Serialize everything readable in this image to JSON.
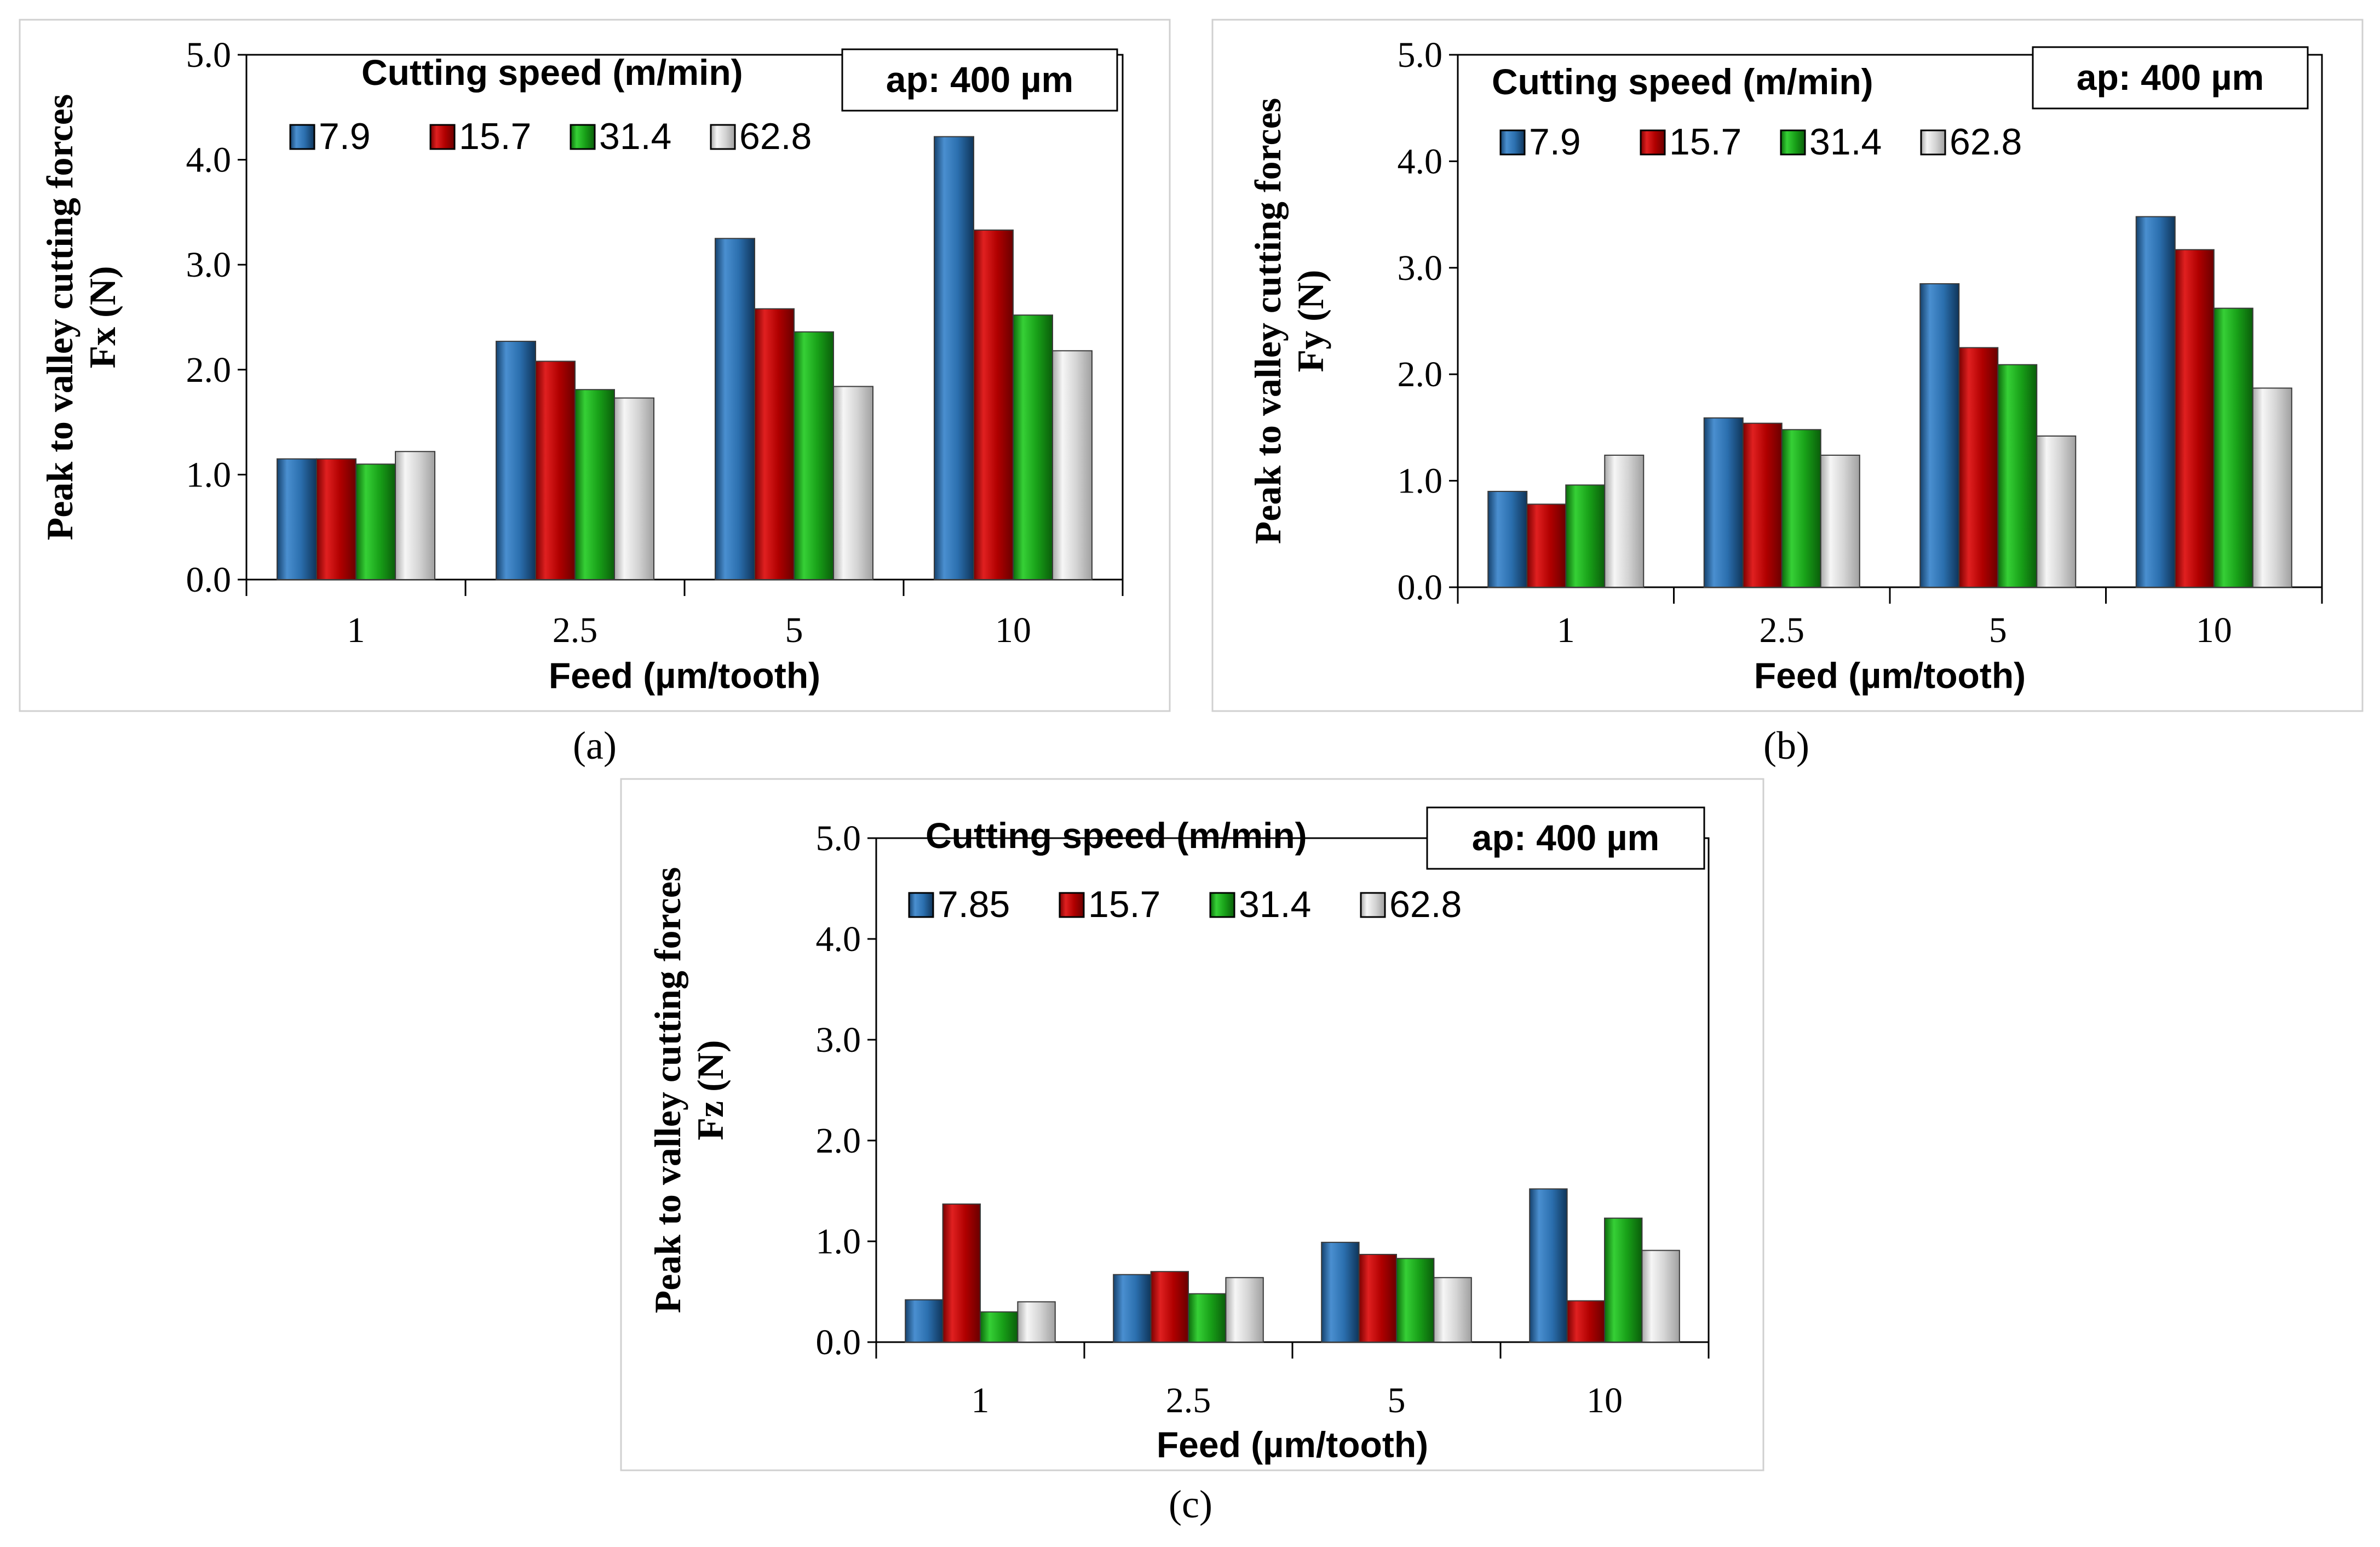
{
  "chart_data": [
    {
      "type": "bar",
      "panel_caption": "(a)",
      "legend_title": "Cutting speed (m/min)",
      "annotation": "ap: 400 µm",
      "ylabel_line1": "Peak to valley cutting forces",
      "ylabel_line2": "Fx (N)",
      "xlabel": "Feed (µm/tooth)",
      "categories": [
        "1",
        "2.5",
        "5",
        "10"
      ],
      "ylim": [
        0,
        5
      ],
      "yticks": [
        "0.0",
        "1.0",
        "2.0",
        "3.0",
        "4.0",
        "5.0"
      ],
      "series": [
        {
          "name": "7.9",
          "color": "#2e75b6",
          "values": [
            1.15,
            2.27,
            3.25,
            4.22
          ]
        },
        {
          "name": "15.7",
          "color": "#c00000",
          "values": [
            1.15,
            2.08,
            2.58,
            3.33
          ]
        },
        {
          "name": "31.4",
          "color": "#1aa51a",
          "values": [
            1.1,
            1.81,
            2.36,
            2.52
          ]
        },
        {
          "name": "62.8",
          "color": "#d9d9d9",
          "values": [
            1.22,
            1.73,
            1.84,
            2.18
          ]
        }
      ]
    },
    {
      "type": "bar",
      "panel_caption": "(b)",
      "legend_title": "Cutting speed (m/min)",
      "annotation": "ap: 400 µm",
      "ylabel_line1": "Peak to valley cutting forces",
      "ylabel_line2": "Fy (N)",
      "xlabel": "Feed (µm/tooth)",
      "categories": [
        "1",
        "2.5",
        "5",
        "10"
      ],
      "ylim": [
        0,
        5
      ],
      "yticks": [
        "0.0",
        "1.0",
        "2.0",
        "3.0",
        "4.0",
        "5.0"
      ],
      "series": [
        {
          "name": "7.9",
          "color": "#2e75b6",
          "values": [
            0.9,
            1.59,
            2.85,
            3.48
          ]
        },
        {
          "name": "15.7",
          "color": "#c00000",
          "values": [
            0.78,
            1.54,
            2.25,
            3.17
          ]
        },
        {
          "name": "31.4",
          "color": "#1aa51a",
          "values": [
            0.96,
            1.48,
            2.09,
            2.62
          ]
        },
        {
          "name": "62.8",
          "color": "#d9d9d9",
          "values": [
            1.24,
            1.24,
            1.42,
            1.87
          ]
        }
      ]
    },
    {
      "type": "bar",
      "panel_caption": "(c)",
      "legend_title": "Cutting speed (m/min)",
      "annotation": "ap: 400 µm",
      "ylabel_line1": "Peak to valley cutting forces",
      "ylabel_line2": "Fz (N)",
      "xlabel": "Feed (µm/tooth)",
      "categories": [
        "1",
        "2.5",
        "5",
        "10"
      ],
      "ylim": [
        0,
        5
      ],
      "yticks": [
        "0.0",
        "1.0",
        "2.0",
        "3.0",
        "4.0",
        "5.0"
      ],
      "series": [
        {
          "name": "7.85",
          "color": "#2e75b6",
          "values": [
            0.42,
            0.67,
            0.99,
            1.52
          ]
        },
        {
          "name": "15.7",
          "color": "#c00000",
          "values": [
            1.37,
            0.7,
            0.87,
            0.41
          ]
        },
        {
          "name": "31.4",
          "color": "#1aa51a",
          "values": [
            0.3,
            0.48,
            0.83,
            1.23
          ]
        },
        {
          "name": "62.8",
          "color": "#d9d9d9",
          "values": [
            0.4,
            0.64,
            0.64,
            0.91
          ]
        }
      ]
    }
  ]
}
